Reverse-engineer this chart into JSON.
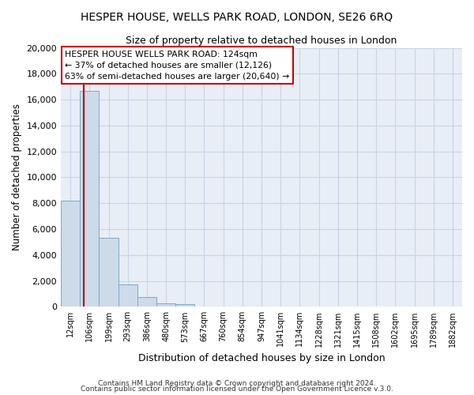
{
  "title": "HESPER HOUSE, WELLS PARK ROAD, LONDON, SE26 6RQ",
  "subtitle": "Size of property relative to detached houses in London",
  "xlabel": "Distribution of detached houses by size in London",
  "ylabel": "Number of detached properties",
  "bar_labels": [
    "12sqm",
    "106sqm",
    "199sqm",
    "293sqm",
    "386sqm",
    "480sqm",
    "573sqm",
    "667sqm",
    "760sqm",
    "854sqm",
    "947sqm",
    "1041sqm",
    "1134sqm",
    "1228sqm",
    "1321sqm",
    "1415sqm",
    "1508sqm",
    "1602sqm",
    "1695sqm",
    "1789sqm",
    "1882sqm"
  ],
  "bar_heights": [
    8200,
    16700,
    5300,
    1750,
    750,
    250,
    200,
    0,
    0,
    0,
    0,
    0,
    0,
    0,
    0,
    0,
    0,
    0,
    0,
    0,
    0
  ],
  "bar_color": "#cddaea",
  "bar_edge_color": "#7aaac8",
  "grid_color": "#c8d4e4",
  "background_color": "#e8eef6",
  "annotation_line1": "HESPER HOUSE WELLS PARK ROAD: 124sqm",
  "annotation_line2": "← 37% of detached houses are smaller (12,126)",
  "annotation_line3": "63% of semi-detached houses are larger (20,640) →",
  "vline_color": "#bb0000",
  "ylim": [
    0,
    20000
  ],
  "yticks": [
    0,
    2000,
    4000,
    6000,
    8000,
    10000,
    12000,
    14000,
    16000,
    18000,
    20000
  ],
  "footer_line1": "Contains HM Land Registry data © Crown copyright and database right 2024.",
  "footer_line2": "Contains public sector information licensed under the Open Government Licence v.3.0."
}
